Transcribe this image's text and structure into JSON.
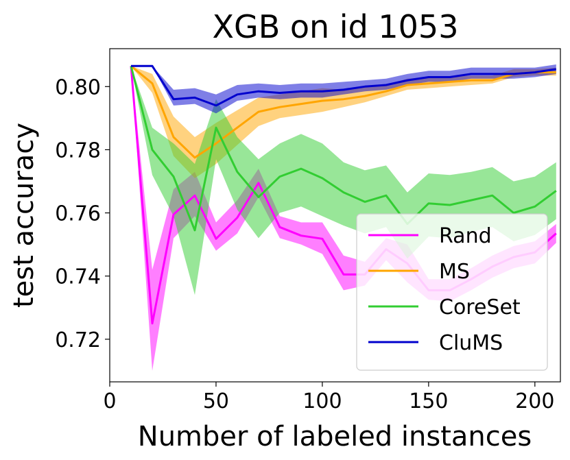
{
  "chart_data": {
    "type": "line",
    "title": "XGB on id 1053",
    "xlabel": "Number of labeled instances",
    "ylabel": "test accuracy",
    "xlim": [
      0,
      212
    ],
    "ylim": [
      0.7065,
      0.812
    ],
    "xticks": [
      0,
      50,
      100,
      150,
      200
    ],
    "xtick_labels": [
      "0",
      "50",
      "100",
      "150",
      "200"
    ],
    "yticks": [
      0.72,
      0.74,
      0.76,
      0.78,
      0.8
    ],
    "ytick_labels": [
      "0.72",
      "0.74",
      "0.76",
      "0.78",
      "0.80"
    ],
    "legend_position": "lower-right",
    "x": [
      10,
      20,
      30,
      40,
      50,
      60,
      70,
      80,
      90,
      100,
      110,
      120,
      130,
      140,
      150,
      160,
      170,
      180,
      190,
      200,
      210
    ],
    "series": [
      {
        "name": "Rand",
        "color": "#ff00ff",
        "values": [
          0.8065,
          0.725,
          0.7595,
          0.7655,
          0.7518,
          0.7585,
          0.7695,
          0.7555,
          0.7528,
          0.7518,
          0.7405,
          0.7405,
          0.7485,
          0.744,
          0.7355,
          0.7355,
          0.739,
          0.743,
          0.746,
          0.7475,
          0.7535
        ],
        "lower": [
          0.8065,
          0.71,
          0.752,
          0.759,
          0.748,
          0.7535,
          0.765,
          0.752,
          0.75,
          0.747,
          0.7355,
          0.737,
          0.745,
          0.738,
          0.7325,
          0.732,
          0.7355,
          0.7395,
          0.7425,
          0.744,
          0.7505
        ],
        "upper": [
          0.8065,
          0.742,
          0.7675,
          0.773,
          0.757,
          0.764,
          0.774,
          0.759,
          0.757,
          0.757,
          0.7465,
          0.7445,
          0.752,
          0.75,
          0.739,
          0.739,
          0.7425,
          0.7465,
          0.7495,
          0.751,
          0.7565
        ]
      },
      {
        "name": "MS",
        "color": "#ffa500",
        "values": [
          0.8065,
          0.801,
          0.784,
          0.7775,
          0.782,
          0.787,
          0.792,
          0.7935,
          0.7945,
          0.7955,
          0.796,
          0.797,
          0.7985,
          0.8005,
          0.801,
          0.8015,
          0.802,
          0.802,
          0.804,
          0.8045,
          0.8045
        ],
        "lower": [
          0.8065,
          0.798,
          0.778,
          0.771,
          0.7755,
          0.7815,
          0.7875,
          0.79,
          0.791,
          0.792,
          0.7935,
          0.795,
          0.797,
          0.799,
          0.7995,
          0.8,
          0.8005,
          0.801,
          0.803,
          0.8035,
          0.8035
        ],
        "upper": [
          0.8065,
          0.804,
          0.7905,
          0.784,
          0.7885,
          0.7925,
          0.7965,
          0.7975,
          0.7985,
          0.7995,
          0.799,
          0.8,
          0.8005,
          0.8025,
          0.803,
          0.803,
          0.8035,
          0.8035,
          0.8055,
          0.8055,
          0.806
        ]
      },
      {
        "name": "CoreSet",
        "color": "#32cd32",
        "values": [
          0.8065,
          0.78,
          0.7715,
          0.7545,
          0.787,
          0.773,
          0.765,
          0.7715,
          0.774,
          0.771,
          0.7665,
          0.7635,
          0.7655,
          0.7565,
          0.763,
          0.7625,
          0.764,
          0.7655,
          0.76,
          0.762,
          0.767
        ],
        "lower": [
          0.8065,
          0.772,
          0.759,
          0.734,
          0.777,
          0.761,
          0.752,
          0.76,
          0.762,
          0.759,
          0.756,
          0.7535,
          0.7555,
          0.7455,
          0.7525,
          0.752,
          0.754,
          0.7555,
          0.751,
          0.753,
          0.758
        ],
        "upper": [
          0.8065,
          0.787,
          0.782,
          0.7755,
          0.796,
          0.784,
          0.777,
          0.782,
          0.785,
          0.782,
          0.776,
          0.7735,
          0.775,
          0.7665,
          0.7725,
          0.772,
          0.773,
          0.7745,
          0.77,
          0.7715,
          0.776
        ]
      },
      {
        "name": "CluMS",
        "color": "#0000cd",
        "values": [
          0.8065,
          0.8065,
          0.796,
          0.7965,
          0.794,
          0.7975,
          0.7985,
          0.798,
          0.7985,
          0.7985,
          0.799,
          0.8,
          0.8005,
          0.802,
          0.803,
          0.803,
          0.804,
          0.804,
          0.804,
          0.8045,
          0.8055
        ],
        "lower": [
          0.8065,
          0.8065,
          0.794,
          0.7945,
          0.7915,
          0.7955,
          0.7965,
          0.796,
          0.7965,
          0.7965,
          0.7975,
          0.7985,
          0.799,
          0.8005,
          0.8015,
          0.8015,
          0.8025,
          0.8025,
          0.8025,
          0.803,
          0.804
        ],
        "upper": [
          0.8065,
          0.8065,
          0.799,
          0.7995,
          0.7975,
          0.8005,
          0.801,
          0.8005,
          0.801,
          0.801,
          0.8015,
          0.802,
          0.8025,
          0.804,
          0.805,
          0.805,
          0.806,
          0.806,
          0.806,
          0.806,
          0.807
        ]
      }
    ]
  }
}
